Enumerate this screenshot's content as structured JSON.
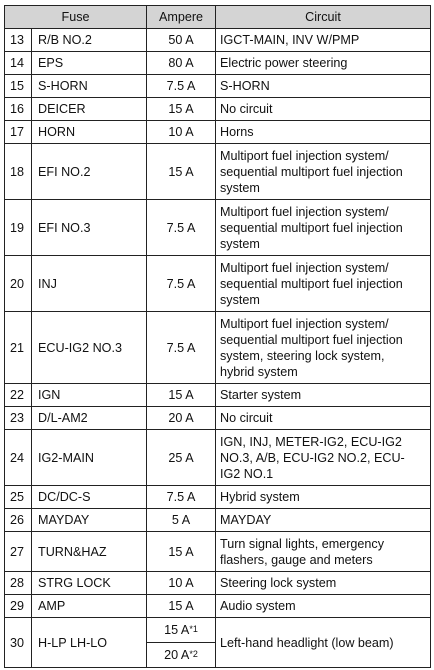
{
  "header": {
    "fuse": "Fuse",
    "ampere": "Ampere",
    "circuit": "Circuit"
  },
  "rows": [
    {
      "no": "13",
      "fuse": "R/B NO.2",
      "ampere": "50 A",
      "circuit": [
        "IGCT-MAIN, INV W/PMP"
      ]
    },
    {
      "no": "14",
      "fuse": "EPS",
      "ampere": "80 A",
      "circuit": [
        "Electric power steering"
      ]
    },
    {
      "no": "15",
      "fuse": "S-HORN",
      "ampere": "7.5 A",
      "circuit": [
        "S-HORN"
      ]
    },
    {
      "no": "16",
      "fuse": "DEICER",
      "ampere": "15 A",
      "circuit": [
        "No circuit"
      ]
    },
    {
      "no": "17",
      "fuse": "HORN",
      "ampere": "10 A",
      "circuit": [
        "Horns"
      ]
    },
    {
      "no": "18",
      "fuse": "EFI NO.2",
      "ampere": "15 A",
      "circuit": [
        "Multiport fuel injection system/",
        "sequential multiport fuel injection",
        "system"
      ]
    },
    {
      "no": "19",
      "fuse": "EFI NO.3",
      "ampere": "7.5 A",
      "circuit": [
        "Multiport fuel injection system/",
        "sequential multiport fuel injection",
        "system"
      ]
    },
    {
      "no": "20",
      "fuse": "INJ",
      "ampere": "7.5 A",
      "circuit": [
        "Multiport fuel injection system/",
        "sequential multiport fuel injection",
        "system"
      ]
    },
    {
      "no": "21",
      "fuse": "ECU-IG2 NO.3",
      "ampere": "7.5 A",
      "circuit": [
        "Multiport fuel injection system/",
        "sequential multiport fuel injection",
        "system, steering lock system,",
        "hybrid system"
      ]
    },
    {
      "no": "22",
      "fuse": "IGN",
      "ampere": "15 A",
      "circuit": [
        "Starter system"
      ]
    },
    {
      "no": "23",
      "fuse": "D/L-AM2",
      "ampere": "20 A",
      "circuit": [
        "No circuit"
      ]
    },
    {
      "no": "24",
      "fuse": "IG2-MAIN",
      "ampere": "25 A",
      "circuit": [
        "IGN, INJ, METER-IG2, ECU-IG2",
        "NO.3, A/B, ECU-IG2 NO.2, ECU-",
        "IG2 NO.1"
      ]
    },
    {
      "no": "25",
      "fuse": "DC/DC-S",
      "ampere": "7.5 A",
      "circuit": [
        "Hybrid system"
      ]
    },
    {
      "no": "26",
      "fuse": "MAYDAY",
      "ampere": "5 A",
      "circuit": [
        "MAYDAY"
      ]
    },
    {
      "no": "27",
      "fuse": "TURN&HAZ",
      "ampere": "15 A",
      "circuit": [
        "Turn signal lights, emergency",
        "flashers, gauge and meters"
      ]
    },
    {
      "no": "28",
      "fuse": "STRG LOCK",
      "ampere": "10 A",
      "circuit": [
        "Steering lock system"
      ]
    },
    {
      "no": "29",
      "fuse": "AMP",
      "ampere": "15 A",
      "circuit": [
        "Audio system"
      ]
    }
  ],
  "last_row": {
    "no": "30",
    "fuse": "H-LP LH-LO",
    "ampere_1": "15 A",
    "note_1": "*1",
    "ampere_2": "20 A",
    "note_2": "*2",
    "circuit": "Left-hand headlight (low beam)"
  }
}
